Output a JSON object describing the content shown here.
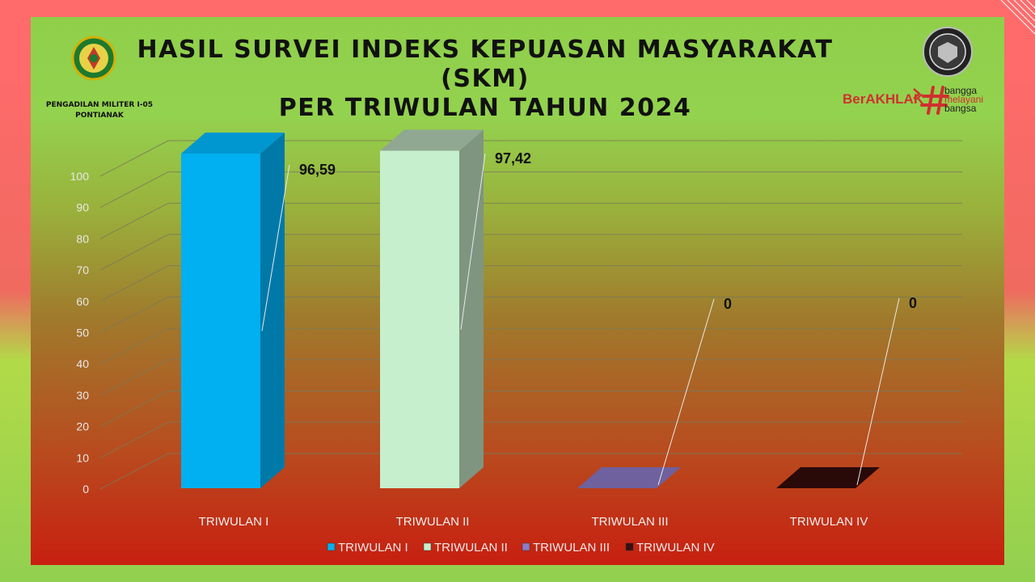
{
  "title_line1": "HASIL SURVEI INDEKS KEPUASAN MASYARAKAT (SKM)",
  "title_line2": "PER TRIWULAN TAHUN 2024",
  "org_name_line1": "PENGADILAN MILITER I-05",
  "org_name_line2": "PONTIANAK",
  "logo_left_icon": "court-emblem-icon",
  "logo_right_icon": "zona-integritas-seal-icon",
  "brand": {
    "main": "BerAKHLAK",
    "tag1": "bangga",
    "tag2": "melayani",
    "tag3": "bangsa"
  },
  "colors": {
    "accent_red": "#d03030",
    "series": [
      "#00b0f0",
      "#c6efce",
      "#8e7cc3",
      "#3a0f0f"
    ]
  },
  "chart_data": {
    "type": "bar",
    "three_d": true,
    "categories": [
      "TRIWULAN I",
      "TRIWULAN II",
      "TRIWULAN III",
      "TRIWULAN IV"
    ],
    "values": [
      96.59,
      97.42,
      0,
      0
    ],
    "value_labels": [
      "96,59",
      "97,42",
      "0",
      "0"
    ],
    "ylim": [
      0,
      100
    ],
    "yticks": [
      "0",
      "10",
      "20",
      "30",
      "40",
      "50",
      "60",
      "70",
      "80",
      "90",
      "100"
    ],
    "legend": [
      "TRIWULAN I",
      "TRIWULAN II",
      "TRIWULAN III",
      "TRIWULAN IV"
    ],
    "legend_position": "bottom",
    "grid": true
  }
}
